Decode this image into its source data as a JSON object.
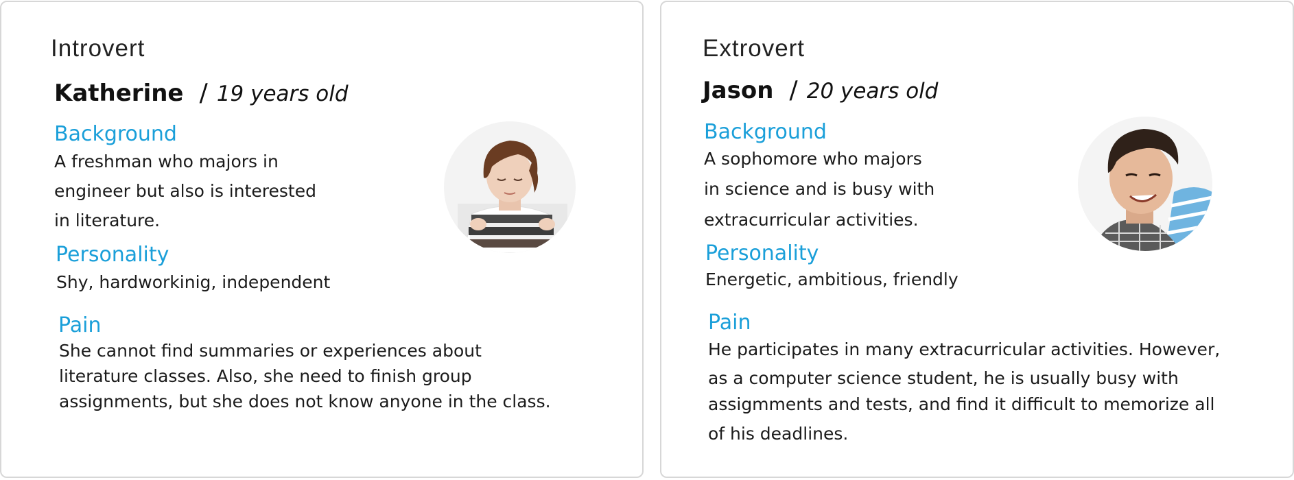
{
  "personas": [
    {
      "type": "Introvert",
      "name": "Katherine",
      "separator": "/",
      "age": "19 years old",
      "background_heading": "Background",
      "background_lines": [
        "A freshman who majors in",
        "engineer but also is interested",
        "in literature."
      ],
      "personality_heading": "Personality",
      "personality": "Shy, hardworkinig, independent",
      "pain_heading": "Pain",
      "pain_lines": [
        "She cannot find summaries or experiences about",
        "literature classes. Also, she need to finish group",
        "assignments, but she does not know anyone in the  class."
      ],
      "photo_icon": "portrait-photo"
    },
    {
      "type": "Extrovert",
      "name": "Jason",
      "separator": "/",
      "age": "20 years old",
      "background_heading": "Background",
      "background_lines": [
        "A sophomore who majors",
        "in science and  is busy with",
        "extracurricular activities."
      ],
      "personality_heading": "Personality",
      "personality": "Energetic, ambitious, friendly",
      "pain_heading": "Pain",
      "pain_lines": [
        "He participates in many extracurricular activities. However,",
        "as a computer science student, he is usually busy with",
        "assigmments and tests, and find it difficult to memorize all",
        "of his deadlines."
      ],
      "photo_icon": "portrait-photo"
    }
  ],
  "colors": {
    "heading": "#1a9fd9",
    "border": "#d7d7d7",
    "text": "#1b1b1b"
  }
}
